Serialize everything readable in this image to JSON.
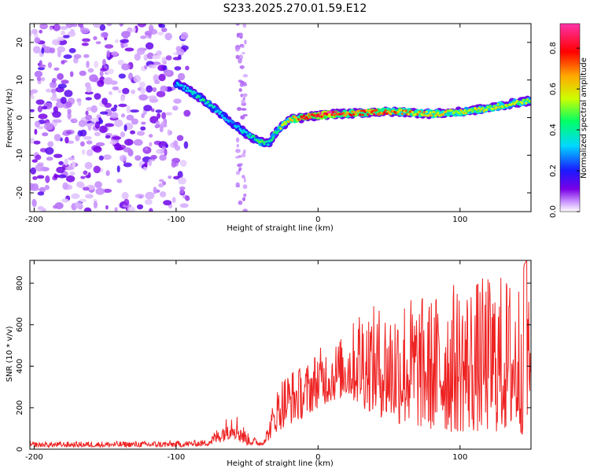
{
  "page_title": "S233.2025.270.01.59.E12",
  "chart_data": [
    {
      "type": "heatmap",
      "title": "S233.2025.270.01.59.E12",
      "xlabel": "Height of straight line (km)",
      "ylabel": "Frequency (Hz)",
      "xlim": [
        -203,
        150
      ],
      "ylim": [
        -25,
        25
      ],
      "xticks": [
        -200,
        -100,
        0,
        100
      ],
      "yticks": [
        -20,
        -10,
        0,
        10,
        20
      ],
      "colorbar": {
        "label": "Normalized spectral amplitude",
        "range": [
          0.0,
          0.92
        ],
        "ticks": [
          0.0,
          0.2,
          0.4,
          0.6,
          0.8
        ],
        "colormap": [
          "#ffffff",
          "#cc99ff",
          "#7a00e6",
          "#1a1aff",
          "#00d8ff",
          "#00ff66",
          "#ccff00",
          "#ffaa00",
          "#ff0000",
          "#ff33aa"
        ]
      },
      "ridge": {
        "x": [
          -100,
          -90,
          -80,
          -70,
          -60,
          -50,
          -40,
          -35,
          -30,
          -20,
          -10,
          0,
          10,
          20,
          40,
          60,
          80,
          100,
          120,
          140,
          150
        ],
        "y": [
          9,
          7,
          4.5,
          1.5,
          -1.5,
          -4.5,
          -6.5,
          -7,
          -4,
          -0.5,
          0,
          0.5,
          1,
          1,
          1.5,
          1.5,
          1,
          1.5,
          2.5,
          4,
          4.5
        ],
        "amplitude": [
          0.3,
          0.35,
          0.4,
          0.35,
          0.3,
          0.35,
          0.45,
          0.35,
          0.45,
          0.6,
          0.75,
          0.8,
          0.85,
          0.7,
          0.75,
          0.65,
          0.6,
          0.55,
          0.55,
          0.5,
          0.5
        ]
      },
      "noise_region_x": [
        -203,
        -92
      ]
    },
    {
      "type": "line",
      "xlabel": "Height of straight line (km)",
      "ylabel": "SNR (10 * v/v)",
      "xlim": [
        -203,
        150
      ],
      "ylim": [
        0,
        910
      ],
      "xticks": [
        -200,
        -100,
        0,
        100
      ],
      "yticks": [
        0,
        200,
        400,
        600,
        800
      ],
      "series": [
        {
          "name": "SNR",
          "color": "#ee2222",
          "envelope_x": [
            -203,
            -100,
            -80,
            -75,
            -65,
            -60,
            -55,
            -50,
            -40,
            -35,
            -30,
            -25,
            -20,
            -10,
            0,
            10,
            20,
            25,
            30,
            40,
            50,
            60,
            70,
            80,
            90,
            100,
            110,
            120,
            130,
            140,
            147,
            150
          ],
          "envelope_low": [
            10,
            10,
            15,
            20,
            40,
            60,
            30,
            20,
            15,
            40,
            80,
            100,
            120,
            150,
            200,
            230,
            250,
            230,
            200,
            170,
            130,
            110,
            100,
            90,
            80,
            80,
            80,
            80,
            80,
            80,
            60,
            250
          ],
          "envelope_high": [
            35,
            40,
            45,
            70,
            150,
            200,
            150,
            80,
            40,
            120,
            280,
            360,
            390,
            400,
            490,
            510,
            560,
            620,
            720,
            690,
            710,
            760,
            740,
            740,
            800,
            810,
            820,
            840,
            850,
            830,
            910,
            520
          ]
        }
      ]
    }
  ]
}
